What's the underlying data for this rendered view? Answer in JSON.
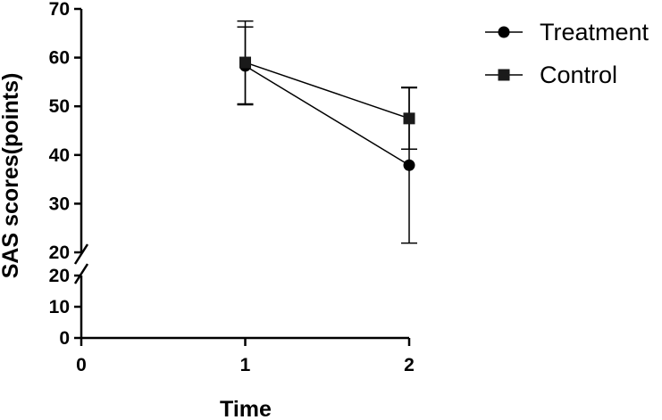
{
  "chart_data": {
    "type": "line",
    "xlabel": "Time",
    "ylabel": "SAS scores(points)",
    "x_ticks": [
      "0",
      "1",
      "2"
    ],
    "y_ticks_lower": [
      "0",
      "10",
      "20"
    ],
    "y_ticks_upper": [
      "20",
      "30",
      "40",
      "50",
      "60",
      "70"
    ],
    "xlim": [
      0,
      2
    ],
    "ylim_lower": [
      0,
      20
    ],
    "ylim_upper": [
      20,
      70
    ],
    "axis_break": true,
    "grid": false,
    "legend_position": "top-right",
    "series": [
      {
        "name": "Treatment",
        "marker": "circle",
        "color": "#000000",
        "x": [
          1,
          2
        ],
        "y": [
          58.3,
          37.9
        ],
        "error": [
          8.0,
          16.0
        ]
      },
      {
        "name": "Control",
        "marker": "square",
        "color": "#1a1a1a",
        "x": [
          1,
          2
        ],
        "y": [
          59.0,
          47.5
        ],
        "error": [
          8.5,
          6.3
        ]
      }
    ]
  }
}
